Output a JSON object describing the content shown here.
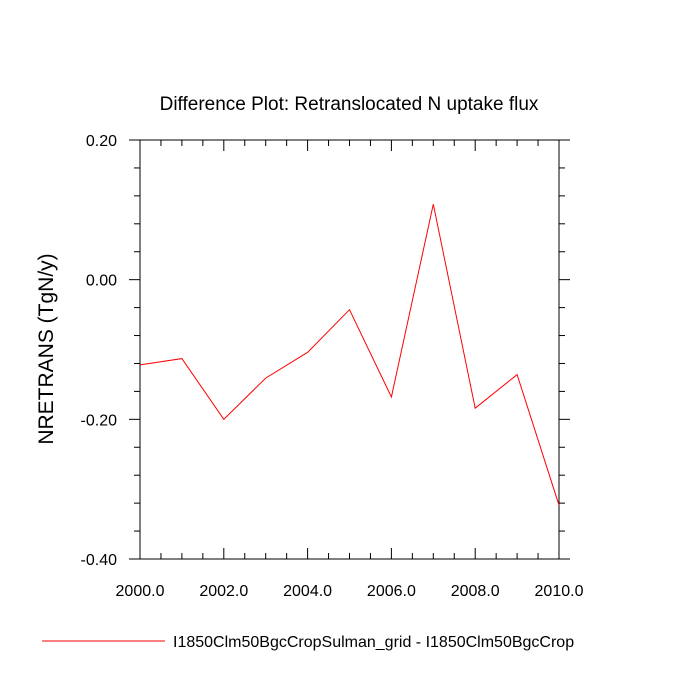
{
  "chart_data": {
    "type": "line",
    "title": "Difference Plot: Retranslocated N uptake flux",
    "xlabel": "",
    "ylabel": "NRETRANS  (TgN/y)",
    "xlim": [
      2000,
      2010
    ],
    "ylim": [
      -0.4,
      0.2
    ],
    "x_ticks": [
      2000,
      2002,
      2004,
      2006,
      2008,
      2010
    ],
    "x_tick_labels": [
      "2000.0",
      "2002.0",
      "2004.0",
      "2006.0",
      "2008.0",
      "2010.0"
    ],
    "y_ticks": [
      0.2,
      0.0,
      -0.2,
      -0.4
    ],
    "y_tick_labels": [
      "0.20",
      "0.00",
      "-0.20",
      "-0.40"
    ],
    "grid": false,
    "legend_position": "bottom",
    "series": [
      {
        "name": "I1850Clm50BgcCropSulman_grid - I1850Clm50BgcCrop",
        "color": "#ff0000",
        "x": [
          2000,
          2001,
          2002,
          2003,
          2004,
          2005,
          2006,
          2007,
          2008,
          2009,
          2010
        ],
        "y": [
          -0.122,
          -0.113,
          -0.2,
          -0.141,
          -0.104,
          -0.043,
          -0.168,
          0.108,
          -0.184,
          -0.136,
          -0.323
        ]
      }
    ]
  }
}
